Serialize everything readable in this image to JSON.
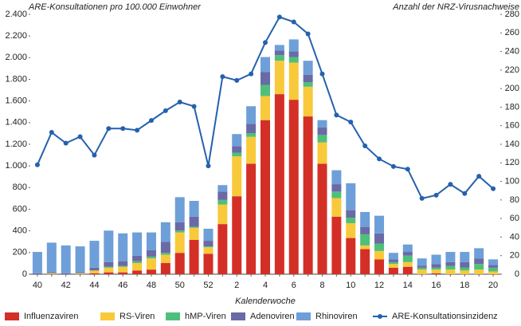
{
  "chart_data": {
    "type": "combo",
    "title": "ARE-Konsultationen pro 100.000 Einwohner",
    "y2_title": "Anzahl der NRZ-Virusnachweise",
    "x_label": "Kalenderwoche",
    "categories": [
      "40",
      null,
      "42",
      null,
      "44",
      null,
      "46",
      null,
      "48",
      null,
      "50",
      null,
      "52",
      null,
      "2",
      null,
      "4",
      null,
      "6",
      null,
      "8",
      null,
      "10",
      null,
      "12",
      null,
      "14",
      null,
      "16",
      null,
      "18",
      null,
      "20"
    ],
    "ylim": [
      0,
      2400
    ],
    "yticks": [
      0,
      200,
      400,
      600,
      800,
      {
        "value": 1000,
        "label": "1.000"
      },
      {
        "value": 1200,
        "label": "1.200"
      },
      {
        "value": 1400,
        "label": "1.400"
      },
      {
        "value": 1600,
        "label": "1.600"
      },
      {
        "value": 1800,
        "label": "1.800"
      },
      {
        "value": 2000,
        "label": "2.000"
      },
      {
        "value": 2200,
        "label": "2.200"
      },
      {
        "value": 2400,
        "label": "2.400"
      }
    ],
    "y2lim": [
      0,
      280
    ],
    "y2ticks": [
      0,
      20,
      40,
      60,
      80,
      100,
      120,
      140,
      160,
      180,
      200,
      220,
      240,
      260,
      280
    ],
    "grid": false,
    "series": [
      {
        "name": "Influenzaviren",
        "type": "bar",
        "axis": "y2",
        "color": "#d42f27",
        "values": [
          0,
          0,
          0,
          0,
          1,
          2,
          2,
          4,
          5,
          12,
          23,
          37,
          22,
          54,
          84,
          119,
          166,
          194,
          188,
          170,
          119,
          62,
          39,
          27,
          16,
          7,
          8,
          0,
          1,
          0,
          0,
          0,
          0
        ]
      },
      {
        "name": "RS-Viren",
        "type": "bar",
        "axis": "y2",
        "color": "#f8c93a",
        "values": [
          0,
          1,
          0,
          1,
          3,
          5,
          6,
          8,
          12,
          9,
          22,
          13,
          7,
          21,
          43,
          29,
          26,
          36,
          40,
          32,
          23,
          20,
          16,
          4,
          9,
          4,
          5,
          5,
          4,
          5,
          4,
          5,
          3
        ]
      },
      {
        "name": "hMP-Viren",
        "type": "bar",
        "axis": "y2",
        "color": "#4fbf7b",
        "values": [
          0,
          0,
          0,
          0,
          0,
          1,
          1,
          2,
          2,
          2,
          2,
          1,
          1,
          5,
          4,
          4,
          12,
          6,
          6,
          5,
          8,
          7,
          6,
          12,
          8,
          2,
          7,
          2,
          2,
          4,
          3,
          6,
          4
        ]
      },
      {
        "name": "Adenoviren",
        "type": "bar",
        "axis": "y2",
        "color": "#6a6aa6",
        "values": [
          1,
          1,
          1,
          1,
          3,
          5,
          5,
          6,
          7,
          12,
          9,
          11,
          6,
          9,
          7,
          10,
          14,
          5,
          6,
          8,
          8,
          8,
          8,
          8,
          11,
          3,
          4,
          2,
          4,
          4,
          6,
          6,
          3
        ]
      },
      {
        "name": "Rhinoviren",
        "type": "bar",
        "axis": "y2",
        "color": "#6e9fd8",
        "values": [
          23,
          32,
          30,
          28,
          29,
          34,
          30,
          25,
          19,
          21,
          27,
          17,
          13,
          7,
          13,
          19,
          16,
          6,
          13,
          15,
          8,
          15,
          29,
          16,
          19,
          7,
          8,
          8,
          10,
          11,
          11,
          11,
          6
        ]
      },
      {
        "name": "ARE-Konsultationsinzidenz",
        "type": "line",
        "axis": "y",
        "color": "#2461ae",
        "values": [
          1010,
          1310,
          1210,
          1270,
          1100,
          1345,
          1345,
          1330,
          1420,
          1510,
          1590,
          1550,
          1000,
          1825,
          1790,
          1850,
          2140,
          2375,
          2330,
          2220,
          1850,
          1470,
          1405,
          1185,
          1065,
          995,
          970,
          700,
          730,
          830,
          745,
          905,
          790
        ]
      }
    ]
  }
}
